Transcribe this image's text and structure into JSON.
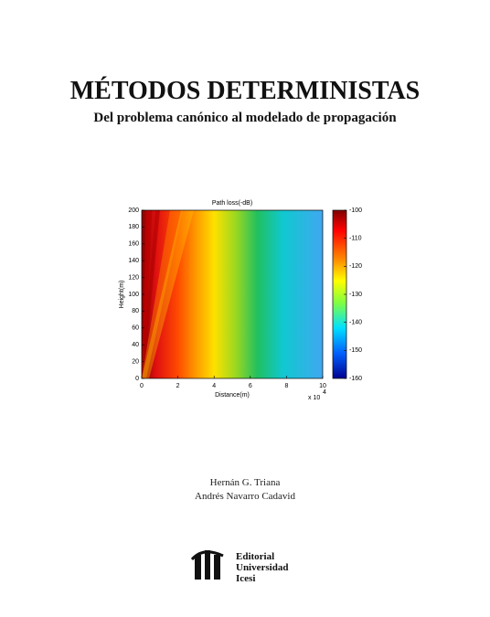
{
  "cover": {
    "title": "MÉTODOS DETERMINISTAS",
    "subtitle": "Del problema canónico al modelado de propagación",
    "authors": [
      "Hernán G. Triana",
      "Andrés Navarro Cadavid"
    ],
    "publisher": [
      "Editorial",
      "Universidad",
      "Icesi"
    ]
  },
  "chart": {
    "type": "heatmap",
    "title": "Path loss(-dB)",
    "x_label": "Distance(m)",
    "y_label": "Height(m)",
    "x_multiplier": {
      "base": "x 10",
      "exponent": "4"
    },
    "xlim": [
      0,
      10
    ],
    "xticks": [
      0,
      2,
      4,
      6,
      8,
      10
    ],
    "ylim": [
      0,
      200
    ],
    "yticks": [
      0,
      20,
      40,
      60,
      80,
      100,
      120,
      140,
      160,
      180,
      200
    ],
    "clim": [
      -160,
      -100
    ],
    "cticks": [
      -160,
      -150,
      -140,
      -130,
      -120,
      -110,
      -100
    ]
  }
}
